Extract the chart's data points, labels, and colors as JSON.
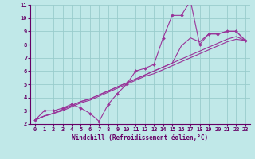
{
  "title": "",
  "xlabel": "Windchill (Refroidissement éolien,°C)",
  "ylabel": "",
  "bg_color": "#c0e8e8",
  "line_color": "#993399",
  "grid_color": "#99cccc",
  "xlim": [
    -0.5,
    23.5
  ],
  "ylim": [
    2,
    11
  ],
  "xticks": [
    0,
    1,
    2,
    3,
    4,
    5,
    6,
    7,
    8,
    9,
    10,
    11,
    12,
    13,
    14,
    15,
    16,
    17,
    18,
    19,
    20,
    21,
    22,
    23
  ],
  "yticks": [
    2,
    3,
    4,
    5,
    6,
    7,
    8,
    9,
    10,
    11
  ],
  "series_main": [
    2.3,
    3.0,
    3.0,
    3.2,
    3.5,
    3.2,
    2.8,
    2.2,
    3.5,
    4.3,
    5.0,
    6.0,
    6.2,
    6.5,
    8.5,
    10.2,
    10.2,
    11.3,
    8.0,
    8.8,
    8.8,
    9.0,
    9.0,
    8.3
  ],
  "series_lines": [
    [
      2.3,
      2.6,
      2.8,
      3.0,
      3.3,
      3.6,
      3.8,
      4.1,
      4.4,
      4.7,
      5.0,
      5.3,
      5.6,
      5.8,
      6.1,
      6.4,
      6.7,
      7.0,
      7.3,
      7.6,
      7.9,
      8.2,
      8.4,
      8.3
    ],
    [
      2.3,
      2.6,
      2.8,
      3.1,
      3.4,
      3.7,
      3.9,
      4.2,
      4.5,
      4.8,
      5.1,
      5.4,
      5.7,
      6.0,
      6.3,
      6.6,
      6.9,
      7.2,
      7.5,
      7.8,
      8.1,
      8.4,
      8.6,
      8.3
    ],
    [
      2.3,
      2.6,
      2.8,
      3.1,
      3.4,
      3.7,
      3.9,
      4.2,
      4.5,
      4.8,
      5.1,
      5.4,
      5.7,
      6.0,
      6.3,
      6.6,
      7.9,
      8.5,
      8.2,
      8.8,
      8.8,
      9.0,
      9.0,
      8.3
    ]
  ],
  "spine_color": "#660066",
  "tick_color": "#660066",
  "label_color": "#660066",
  "fontsize_ticks": 5.0,
  "fontsize_xlabel": 5.5,
  "lw_main": 0.8,
  "lw_lines": 0.8
}
